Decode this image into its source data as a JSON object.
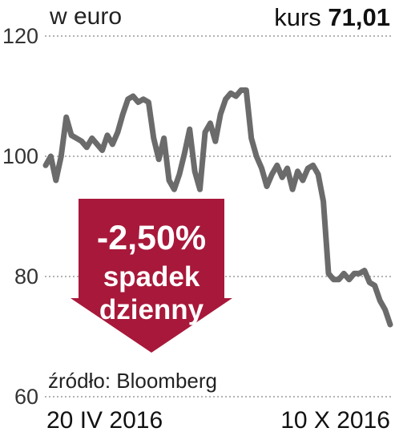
{
  "header": {
    "unit": "w euro",
    "price_label": "kurs",
    "price_value": "71,01"
  },
  "source": "źródło: Bloomberg",
  "badge": {
    "change": "-2,50%",
    "line1": "spadek",
    "line2": "dzienny",
    "color": "#a8183a"
  },
  "chart_data": {
    "type": "line",
    "title": "",
    "xlabel": "",
    "ylabel": "w euro",
    "x_start_label": "20 IV 2016",
    "x_end_label": "10 X 2016",
    "yticks": [
      60,
      80,
      100,
      120
    ],
    "ytick_labels": [
      "60",
      "80",
      "100",
      "120"
    ],
    "ylim": [
      60,
      120
    ],
    "grid": "horizontal-dashed",
    "line_color": "#6b6b6b",
    "series": [
      {
        "values": [
          98.5,
          100,
          96,
          100,
          106.5,
          103.5,
          103,
          102.5,
          101.5,
          103,
          102,
          101,
          103.5,
          102,
          104,
          107,
          109.5,
          110,
          109,
          109.5,
          109,
          103,
          99.5,
          103,
          96,
          94.5,
          97,
          100.5,
          104.5,
          97.5,
          94.5,
          104,
          105.5,
          102.5,
          107,
          109.5,
          110.5,
          110,
          111,
          111,
          103,
          100,
          98,
          95,
          97,
          98.5,
          96.5,
          98,
          94.5,
          97.5,
          96,
          98,
          98.5,
          97,
          92.5,
          80.5,
          79.5,
          79.5,
          80.5,
          79.5,
          80.5,
          80.5,
          81,
          79,
          78.5,
          76,
          74.5,
          72
        ]
      }
    ]
  }
}
